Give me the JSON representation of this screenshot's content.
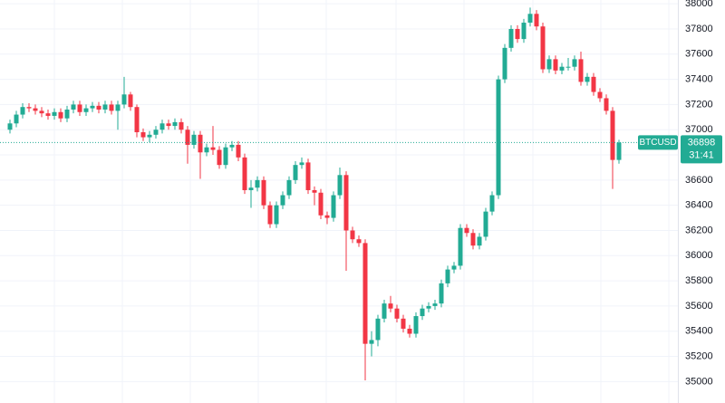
{
  "chart_data": {
    "type": "candlestick",
    "symbol": "BTCUSD",
    "countdown": "31:41",
    "up_color": "#22ab94",
    "down_color": "#f23645",
    "grid": true,
    "ylim": [
      34830,
      38030
    ],
    "yticks": [
      35000,
      35200,
      35400,
      35600,
      35800,
      36000,
      36200,
      36400,
      36600,
      36800,
      37000,
      37200,
      37400,
      37600,
      37800,
      38000
    ],
    "open": [
      37000,
      37050,
      37120,
      37180,
      37170,
      37150,
      37130,
      37110,
      37140,
      37090,
      37160,
      37200,
      37140,
      37170,
      37190,
      37160,
      37200,
      37150,
      37200,
      37280,
      37180,
      36980,
      36940,
      36960,
      37000,
      37050,
      37030,
      37060,
      37000,
      36880,
      36960,
      36820,
      36860,
      36840,
      36720,
      36860,
      36880,
      36780,
      36520,
      36540,
      36600,
      36400,
      36250,
      36400,
      36480,
      36600,
      36720,
      36740,
      36520,
      36500,
      36320,
      36300,
      36480,
      36640,
      36200,
      36130,
      36100,
      35300,
      35330,
      35500,
      35620,
      35580,
      35500,
      35420,
      35380,
      35520,
      35580,
      35600,
      35620,
      35780,
      35890,
      35920,
      36220,
      36180,
      36080,
      36150,
      36350,
      36480,
      37400,
      37650,
      37800,
      37720,
      37850,
      37920,
      37820,
      37480,
      37560,
      37470,
      37500,
      37500,
      37560,
      37380,
      37420,
      37300,
      37250,
      37150,
      36760
    ],
    "high": [
      37080,
      37150,
      37210,
      37210,
      37200,
      37180,
      37160,
      37170,
      37170,
      37190,
      37230,
      37230,
      37200,
      37220,
      37220,
      37230,
      37230,
      37230,
      37420,
      37300,
      37200,
      37010,
      36990,
      37030,
      37080,
      37080,
      37090,
      37090,
      37030,
      36990,
      36990,
      36890,
      37030,
      36870,
      36890,
      36910,
      36910,
      36810,
      36600,
      36630,
      36630,
      36430,
      36430,
      36510,
      36630,
      36750,
      36780,
      36770,
      36550,
      36530,
      36350,
      36510,
      36700,
      36670,
      36230,
      36160,
      36130,
      35400,
      35530,
      35650,
      35680,
      35610,
      35530,
      35450,
      35550,
      35610,
      35630,
      35650,
      35810,
      35920,
      35950,
      36250,
      36250,
      36210,
      36180,
      36380,
      36510,
      37430,
      37680,
      37830,
      37830,
      37880,
      37970,
      37950,
      37850,
      37590,
      37590,
      37530,
      37570,
      37590,
      37620,
      37450,
      37450,
      37330,
      37280,
      37180,
      36920
    ],
    "low": [
      36970,
      37020,
      37090,
      37140,
      37120,
      37100,
      37080,
      37080,
      37060,
      37060,
      37130,
      37110,
      37110,
      37140,
      37130,
      37130,
      37120,
      37000,
      37170,
      37150,
      36940,
      36910,
      36900,
      36930,
      36970,
      37000,
      37000,
      36970,
      36730,
      36850,
      36610,
      36790,
      36800,
      36690,
      36690,
      36830,
      36750,
      36490,
      36380,
      36510,
      36370,
      36220,
      36220,
      36370,
      36450,
      36570,
      36690,
      36490,
      36400,
      36290,
      36250,
      36270,
      36450,
      35880,
      36100,
      36070,
      35010,
      35200,
      35280,
      35470,
      35550,
      35470,
      35390,
      35350,
      35350,
      35490,
      35550,
      35570,
      35590,
      35750,
      35860,
      35890,
      36150,
      36050,
      36050,
      36120,
      36320,
      36450,
      37370,
      37620,
      37690,
      37690,
      37820,
      37790,
      37450,
      37450,
      37440,
      37440,
      37470,
      37470,
      37350,
      37350,
      37270,
      37220,
      37120,
      36530,
      36730
    ],
    "close": [
      37050,
      37120,
      37180,
      37170,
      37150,
      37130,
      37110,
      37140,
      37090,
      37160,
      37200,
      37140,
      37170,
      37190,
      37160,
      37200,
      37150,
      37200,
      37280,
      37180,
      36980,
      36940,
      36960,
      37000,
      37050,
      37030,
      37060,
      37000,
      36880,
      36960,
      36820,
      36860,
      36840,
      36720,
      36860,
      36880,
      36780,
      36520,
      36540,
      36600,
      36400,
      36250,
      36400,
      36480,
      36600,
      36720,
      36740,
      36520,
      36500,
      36320,
      36300,
      36480,
      36640,
      36200,
      36130,
      36100,
      35300,
      35330,
      35500,
      35620,
      35580,
      35500,
      35420,
      35380,
      35520,
      35580,
      35600,
      35620,
      35780,
      35890,
      35920,
      36220,
      36180,
      36080,
      36150,
      36350,
      36480,
      37400,
      37650,
      37800,
      37720,
      37850,
      37920,
      37820,
      37480,
      37560,
      37470,
      37500,
      37500,
      37560,
      37380,
      37420,
      37300,
      37250,
      37150,
      36760,
      36898
    ]
  }
}
